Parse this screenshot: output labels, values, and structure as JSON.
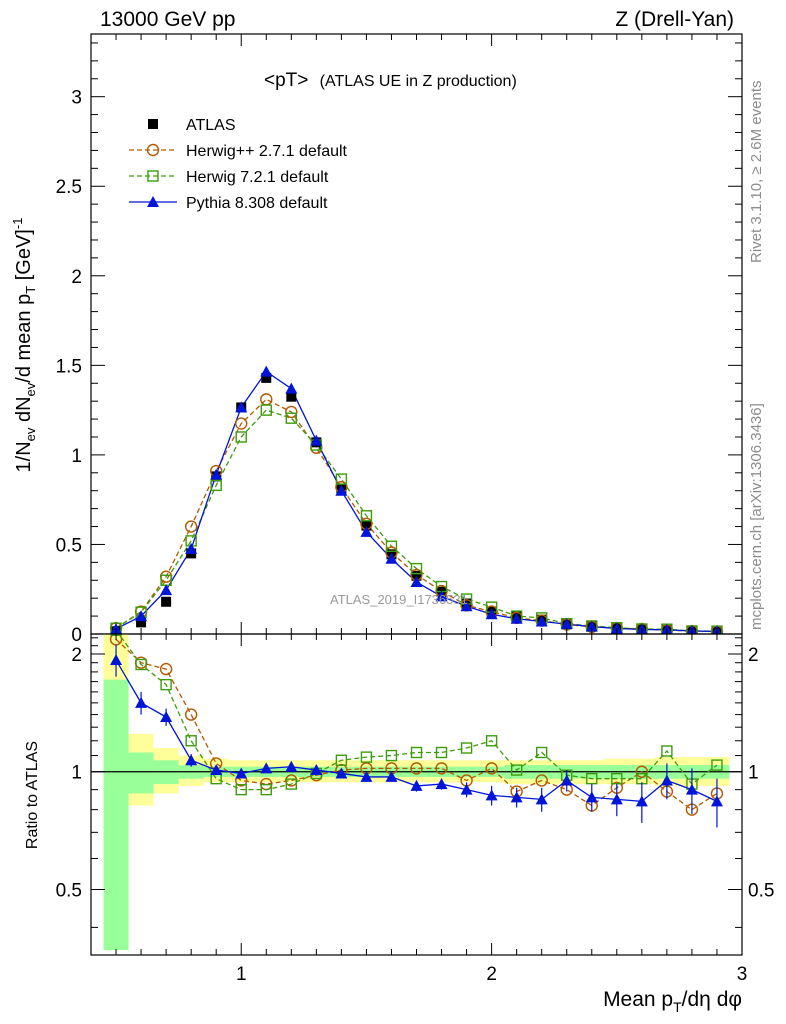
{
  "header": {
    "left": "13000 GeV pp",
    "right": "Z (Drell-Yan)"
  },
  "side_labels": {
    "rivet": "Rivet 3.1.10, ≥ 2.6M events",
    "mcplots": "mcplots.cern.ch [arXiv:1306.3436]"
  },
  "chart_data": [
    {
      "type": "line",
      "title": "<pT>",
      "subtitle": "(ATLAS UE in Z production)",
      "ylabel_main": "1/N",
      "ylabel_sub_ev": "ev",
      "ylabel_mid": " dN",
      "ylabel_end": "/d mean p",
      "ylabel_sub_t": "T",
      "ylabel_unit": " [GeV]",
      "ylabel_sup": "-1",
      "watermark": "ATLAS_2019_I1736531",
      "xlim": [
        0.4,
        3.0
      ],
      "ylim": [
        0,
        3.35
      ],
      "yticks": [
        0,
        0.5,
        1,
        1.5,
        2,
        2.5,
        3
      ],
      "ytick_labels": [
        "0",
        "0.5",
        "1",
        "1.5",
        "2",
        "2.5",
        "3"
      ],
      "x": [
        0.5,
        0.6,
        0.7,
        0.8,
        0.9,
        1.0,
        1.1,
        1.2,
        1.3,
        1.4,
        1.5,
        1.6,
        1.7,
        1.8,
        1.9,
        2.0,
        2.1,
        2.2,
        2.3,
        2.4,
        2.5,
        2.6,
        2.7,
        2.8,
        2.9
      ],
      "series": [
        {
          "name": "ATLAS",
          "color": "#000000",
          "marker": "square-filled",
          "values": [
            0.015,
            0.065,
            0.18,
            0.45,
            0.88,
            1.265,
            1.43,
            1.325,
            1.07,
            0.81,
            0.605,
            0.445,
            0.325,
            0.235,
            0.17,
            0.125,
            0.1,
            0.08,
            0.06,
            0.047,
            0.037,
            0.029,
            0.024,
            0.019,
            0.016
          ]
        },
        {
          "name": "Herwig++ 2.7.1 default",
          "color": "#b35900",
          "marker": "circle-open",
          "dash": "5,3",
          "values": [
            0.033,
            0.125,
            0.32,
            0.6,
            0.91,
            1.175,
            1.31,
            1.24,
            1.04,
            0.82,
            0.615,
            0.455,
            0.33,
            0.24,
            0.16,
            0.125,
            0.09,
            0.075,
            0.053,
            0.04,
            0.033,
            0.028,
            0.021,
            0.016,
            0.014
          ]
        },
        {
          "name": "Herwig 7.2.1 default",
          "color": "#3c9c0c",
          "marker": "square-open",
          "dash": "5,3",
          "values": [
            0.032,
            0.122,
            0.3,
            0.52,
            0.83,
            1.1,
            1.25,
            1.205,
            1.055,
            0.865,
            0.66,
            0.49,
            0.365,
            0.265,
            0.195,
            0.15,
            0.1,
            0.09,
            0.058,
            0.045,
            0.035,
            0.028,
            0.027,
            0.017,
            0.016
          ]
        },
        {
          "name": "Pythia 8.308 default",
          "color": "#0015d8",
          "marker": "triangle-filled",
          "values": [
            0.028,
            0.1,
            0.245,
            0.475,
            0.89,
            1.265,
            1.465,
            1.37,
            1.08,
            0.8,
            0.57,
            0.42,
            0.29,
            0.21,
            0.155,
            0.11,
            0.085,
            0.07,
            0.055,
            0.041,
            0.031,
            0.025,
            0.023,
            0.017,
            0.014
          ]
        }
      ]
    },
    {
      "type": "line",
      "ylabel": "Ratio to ATLAS",
      "xlabel_main": "Mean p",
      "xlabel_sub": "T",
      "xlabel_end": "/dη dφ",
      "xlim": [
        0.4,
        3.0
      ],
      "ylim": [
        0.34,
        2.25
      ],
      "yticks": [
        0.5,
        1,
        2
      ],
      "ytick_labels": [
        "0.5",
        "1",
        "2"
      ],
      "xticks": [
        1,
        2,
        3
      ],
      "xtick_labels": [
        "1",
        "2",
        "3"
      ],
      "x": [
        0.5,
        0.6,
        0.7,
        0.8,
        0.9,
        1.0,
        1.1,
        1.2,
        1.3,
        1.4,
        1.5,
        1.6,
        1.7,
        1.8,
        1.9,
        2.0,
        2.1,
        2.2,
        2.3,
        2.4,
        2.5,
        2.6,
        2.7,
        2.8,
        2.9
      ],
      "band_yellow": [
        [
          0.35,
          2.3
        ],
        [
          0.82,
          1.25
        ],
        [
          0.88,
          1.15
        ],
        [
          0.92,
          1.1
        ],
        [
          0.94,
          1.08
        ],
        [
          0.94,
          1.07
        ],
        [
          0.94,
          1.07
        ],
        [
          0.94,
          1.07
        ],
        [
          0.94,
          1.07
        ],
        [
          0.94,
          1.07
        ],
        [
          0.94,
          1.07
        ],
        [
          0.94,
          1.07
        ],
        [
          0.94,
          1.07
        ],
        [
          0.94,
          1.07
        ],
        [
          0.94,
          1.07
        ],
        [
          0.94,
          1.07
        ],
        [
          0.93,
          1.07
        ],
        [
          0.93,
          1.07
        ],
        [
          0.93,
          1.07
        ],
        [
          0.93,
          1.07
        ],
        [
          0.93,
          1.08
        ],
        [
          0.93,
          1.08
        ],
        [
          0.92,
          1.09
        ],
        [
          0.92,
          1.09
        ],
        [
          0.92,
          1.09
        ]
      ],
      "band_green": [
        [
          0.35,
          1.72
        ],
        [
          0.88,
          1.12
        ],
        [
          0.93,
          1.07
        ],
        [
          0.96,
          1.04
        ],
        [
          0.97,
          1.03
        ],
        [
          0.97,
          1.03
        ],
        [
          0.97,
          1.03
        ],
        [
          0.97,
          1.03
        ],
        [
          0.97,
          1.03
        ],
        [
          0.97,
          1.03
        ],
        [
          0.97,
          1.03
        ],
        [
          0.97,
          1.03
        ],
        [
          0.97,
          1.03
        ],
        [
          0.97,
          1.03
        ],
        [
          0.97,
          1.03
        ],
        [
          0.97,
          1.03
        ],
        [
          0.96,
          1.04
        ],
        [
          0.96,
          1.04
        ],
        [
          0.96,
          1.04
        ],
        [
          0.96,
          1.04
        ],
        [
          0.96,
          1.04
        ],
        [
          0.96,
          1.04
        ],
        [
          0.96,
          1.04
        ],
        [
          0.96,
          1.04
        ],
        [
          0.96,
          1.04
        ]
      ],
      "series": [
        {
          "name": "Herwig++ 2.7.1 default",
          "color": "#b35900",
          "marker": "circle-open",
          "dash": "5,3",
          "values": [
            2.18,
            1.9,
            1.83,
            1.4,
            1.05,
            0.95,
            0.93,
            0.95,
            0.98,
            1.01,
            1.02,
            1.02,
            1.02,
            1.02,
            0.95,
            1.02,
            0.89,
            0.95,
            0.9,
            0.82,
            0.91,
            1.0,
            0.89,
            0.8,
            0.88
          ]
        },
        {
          "name": "Herwig 7.2.1 default",
          "color": "#3c9c0c",
          "marker": "square-open",
          "dash": "5,3",
          "values": [
            2.3,
            1.88,
            1.67,
            1.2,
            0.96,
            0.9,
            0.9,
            0.93,
            0.99,
            1.07,
            1.09,
            1.1,
            1.12,
            1.12,
            1.15,
            1.2,
            1.01,
            1.12,
            0.98,
            0.96,
            0.96,
            0.96,
            1.13,
            0.93,
            1.04
          ]
        },
        {
          "name": "Pythia 8.308 default",
          "color": "#0015d8",
          "marker": "triangle-filled",
          "errors": [
            0.18,
            0.1,
            0.07,
            0.04,
            0.02,
            0.02,
            0.02,
            0.02,
            0.02,
            0.02,
            0.02,
            0.02,
            0.03,
            0.03,
            0.04,
            0.05,
            0.05,
            0.06,
            0.06,
            0.07,
            0.08,
            0.1,
            0.1,
            0.12,
            0.12
          ],
          "values": [
            1.93,
            1.5,
            1.38,
            1.07,
            1.01,
            0.99,
            1.02,
            1.03,
            1.01,
            0.99,
            0.97,
            0.97,
            0.92,
            0.93,
            0.9,
            0.87,
            0.86,
            0.85,
            0.95,
            0.86,
            0.85,
            0.84,
            0.95,
            0.9,
            0.84
          ]
        }
      ]
    }
  ]
}
